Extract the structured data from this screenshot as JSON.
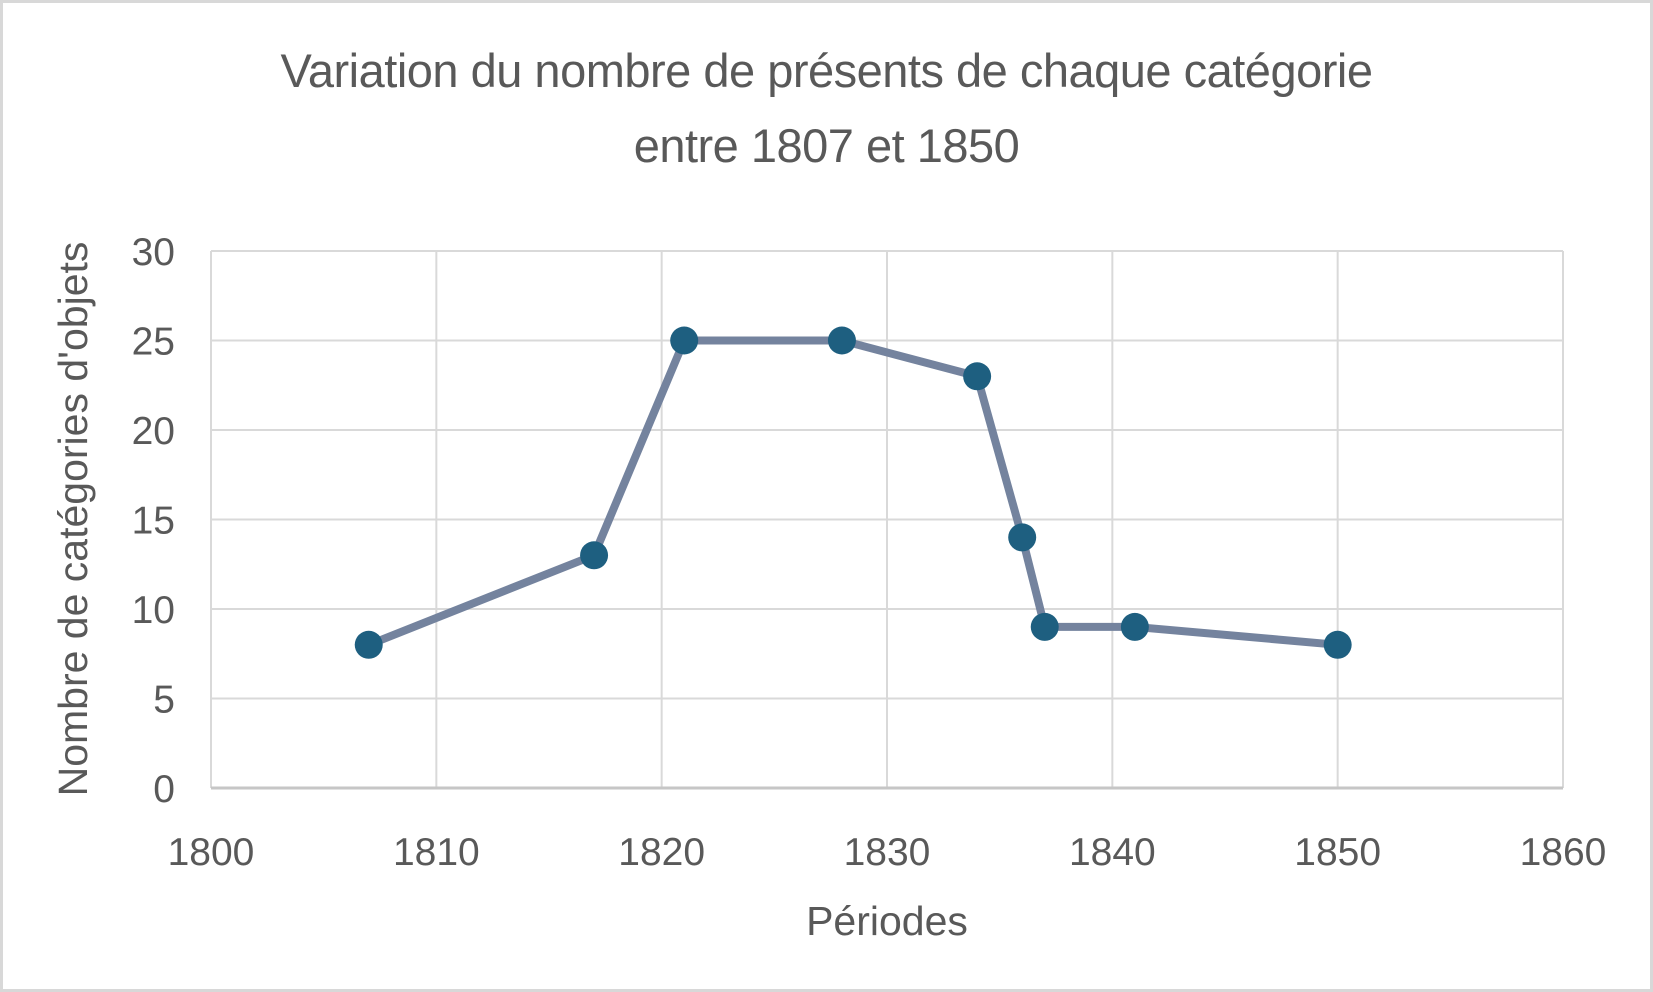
{
  "frame": {
    "background": "#ffffff",
    "border_color": "#d8d8d8"
  },
  "chart_data": {
    "type": "line",
    "title": "Variation du nombre de présents de chaque catégorie entre 1807 et 1850",
    "xlabel": "Périodes",
    "ylabel": "Nombre de catégories d'objets",
    "x": [
      1807,
      1817,
      1821,
      1828,
      1834,
      1836,
      1837,
      1841,
      1850
    ],
    "y": [
      8,
      13,
      25,
      25,
      23,
      14,
      9,
      9,
      8
    ],
    "xlim": [
      1800,
      1860
    ],
    "ylim": [
      0,
      30
    ],
    "xticks": [
      1800,
      1810,
      1820,
      1830,
      1840,
      1850,
      1860
    ],
    "yticks": [
      0,
      5,
      10,
      15,
      20,
      25,
      30
    ],
    "grid": true,
    "legend": false,
    "colors": {
      "line": "#74839E",
      "marker": "#1E5F80",
      "gridline": "#D9D9D9",
      "axis_line": "#C6C6C6",
      "text": "#595959"
    }
  }
}
